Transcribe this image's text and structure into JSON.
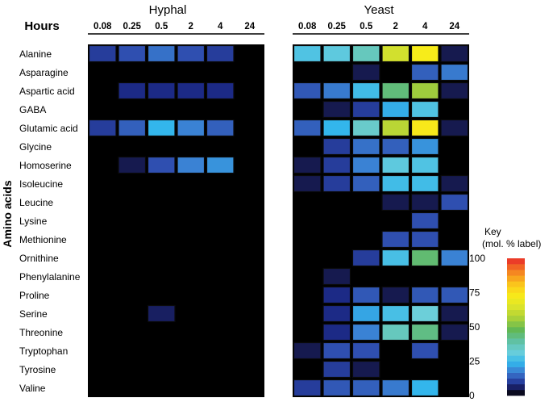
{
  "chart_data": {
    "type": "heatmap",
    "row_axis_label": "Amino acids",
    "time_header_label": "Hours",
    "rows": [
      "Alanine",
      "Asparagine",
      "Aspartic acid",
      "GABA",
      "Glutamic acid",
      "Glycine",
      "Homoserine",
      "Isoleucine",
      "Leucine",
      "Lysine",
      "Methionine",
      "Ornithine",
      "Phenylalanine",
      "Proline",
      "Serine",
      "Threonine",
      "Tryptophan",
      "Tyrosine",
      "Valine"
    ],
    "columns": [
      "0.08",
      "0.25",
      "0.5",
      "2",
      "4",
      "24"
    ],
    "panels": [
      {
        "title": "Hyphal",
        "values": [
          [
            10,
            12,
            16,
            12,
            10,
            0
          ],
          [
            0,
            0,
            0,
            0,
            0,
            0
          ],
          [
            0,
            8,
            8,
            8,
            8,
            0
          ],
          [
            0,
            0,
            0,
            0,
            0,
            0
          ],
          [
            10,
            14,
            24,
            18,
            14,
            0
          ],
          [
            0,
            0,
            0,
            0,
            0,
            0
          ],
          [
            0,
            5,
            12,
            18,
            20,
            0
          ],
          [
            0,
            0,
            0,
            0,
            0,
            0
          ],
          [
            0,
            0,
            0,
            0,
            0,
            0
          ],
          [
            0,
            0,
            0,
            0,
            0,
            0
          ],
          [
            0,
            0,
            0,
            0,
            0,
            0
          ],
          [
            0,
            0,
            0,
            0,
            0,
            0
          ],
          [
            0,
            0,
            0,
            0,
            0,
            0
          ],
          [
            0,
            0,
            0,
            0,
            0,
            0
          ],
          [
            0,
            0,
            6,
            0,
            0,
            0
          ],
          [
            0,
            0,
            0,
            0,
            0,
            0
          ],
          [
            0,
            0,
            0,
            0,
            0,
            0
          ],
          [
            0,
            0,
            0,
            0,
            0,
            0
          ],
          [
            0,
            0,
            0,
            0,
            0,
            0
          ]
        ]
      },
      {
        "title": "Yeast",
        "values": [
          [
            28,
            30,
            36,
            63,
            72,
            5
          ],
          [
            0,
            0,
            5,
            0,
            14,
            17
          ],
          [
            13,
            17,
            26,
            44,
            55,
            5
          ],
          [
            0,
            5,
            10,
            23,
            28,
            0
          ],
          [
            14,
            24,
            34,
            59,
            73,
            5
          ],
          [
            0,
            10,
            16,
            14,
            20,
            0
          ],
          [
            5,
            10,
            18,
            30,
            28,
            0
          ],
          [
            5,
            10,
            14,
            26,
            26,
            5
          ],
          [
            0,
            0,
            0,
            5,
            5,
            12
          ],
          [
            0,
            0,
            0,
            0,
            12,
            0
          ],
          [
            0,
            0,
            0,
            12,
            12,
            0
          ],
          [
            0,
            0,
            10,
            27,
            45,
            18
          ],
          [
            0,
            5,
            0,
            0,
            0,
            0
          ],
          [
            0,
            8,
            13,
            5,
            13,
            13
          ],
          [
            0,
            8,
            22,
            27,
            32,
            5
          ],
          [
            0,
            8,
            18,
            36,
            43,
            5
          ],
          [
            5,
            12,
            12,
            0,
            12,
            0
          ],
          [
            0,
            10,
            5,
            0,
            0,
            0
          ],
          [
            10,
            13,
            14,
            17,
            24,
            0
          ]
        ]
      }
    ],
    "colorbar": {
      "title_line1": "Key",
      "title_line2": "(mol. % label)",
      "min": 0,
      "max": 100,
      "ticks": [
        "100",
        "75",
        "50",
        "25",
        "0"
      ],
      "tick_values": [
        100,
        75,
        50,
        25,
        0
      ],
      "stops": [
        {
          "v": 0,
          "c": "#000000"
        },
        {
          "v": 4,
          "c": "#14143c"
        },
        {
          "v": 8,
          "c": "#1c2a86"
        },
        {
          "v": 12,
          "c": "#2f4fb0"
        },
        {
          "v": 18,
          "c": "#3a82d4"
        },
        {
          "v": 24,
          "c": "#33b6ec"
        },
        {
          "v": 32,
          "c": "#6ccfd9"
        },
        {
          "v": 40,
          "c": "#5fc0a0"
        },
        {
          "v": 48,
          "c": "#62b854"
        },
        {
          "v": 56,
          "c": "#a6cf3a"
        },
        {
          "v": 64,
          "c": "#d8e22c"
        },
        {
          "v": 72,
          "c": "#f7ec1a"
        },
        {
          "v": 80,
          "c": "#fbcd1b"
        },
        {
          "v": 88,
          "c": "#f79420"
        },
        {
          "v": 95,
          "c": "#f05a25"
        },
        {
          "v": 100,
          "c": "#e8262a"
        }
      ]
    }
  }
}
